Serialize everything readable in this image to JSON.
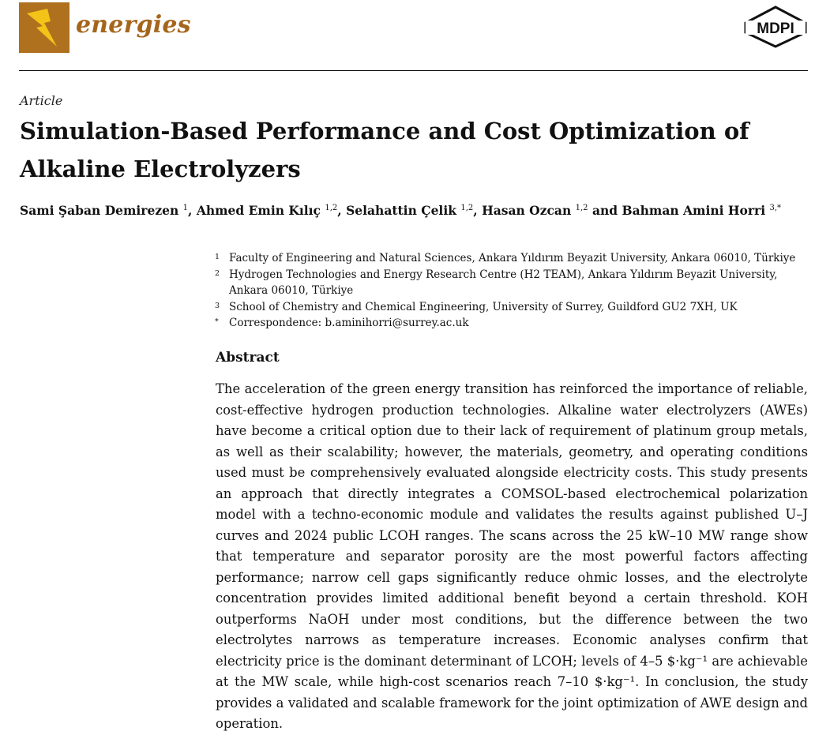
{
  "header": {
    "journal_name": "energies",
    "publisher": "MDPI",
    "logo_icon": "lightning-bolt-icon",
    "colors": {
      "logo_bg": "#b0711f",
      "logo_bolt": "#f3c318",
      "journal_name": "#a5661b"
    }
  },
  "article": {
    "type": "Article",
    "title": "Simulation-Based Performance and Cost Optimization of Alkaline Electrolyzers"
  },
  "authors": [
    {
      "name": "Sami Şaban Demirezen",
      "sup": "1",
      "sep": ", "
    },
    {
      "name": "Ahmed Emin Kılıç",
      "sup": "1,2",
      "sep": ", "
    },
    {
      "name": "Selahattin Çelik",
      "sup": "1,2",
      "sep": ", "
    },
    {
      "name": "Hasan Ozcan",
      "sup": "1,2",
      "sep": " and "
    },
    {
      "name": "Bahman Amini Horri",
      "sup": "3,*",
      "sep": ""
    }
  ],
  "affiliations": [
    {
      "mark": "1",
      "text": "Faculty of Engineering and Natural Sciences, Ankara Yıldırım Beyazit University, Ankara 06010, Türkiye"
    },
    {
      "mark": "2",
      "text": "Hydrogen Technologies and Energy Research Centre (H2 TEAM), Ankara Yıldırım Beyazit University, Ankara 06010, Türkiye"
    },
    {
      "mark": "3",
      "text": "School of Chemistry and Chemical Engineering, University of Surrey, Guildford GU2 7XH, UK"
    },
    {
      "mark": "*",
      "text": "Correspondence: b.aminihorri@surrey.ac.uk"
    }
  ],
  "abstract": {
    "heading": "Abstract",
    "text": "The acceleration of the green energy transition has reinforced the importance of reliable, cost-effective hydrogen production technologies. Alkaline water electrolyzers (AWEs) have become a critical option due to their lack of requirement of platinum group metals, as well as their scalability; however, the materials, geometry, and operating conditions used must be comprehensively evaluated alongside electricity costs. This study presents an approach that directly integrates a COMSOL-based electrochemical polarization model with a techno-economic module and validates the results against published U–J curves and 2024 public LCOH ranges. The scans across the 25 kW–10 MW range show that temperature and separator porosity are the most powerful factors affecting performance; narrow cell gaps significantly reduce ohmic losses, and the electrolyte concentration provides limited additional benefit beyond a certain threshold. KOH outperforms NaOH under most conditions, but the difference between the two electrolytes narrows as temperature increases. Economic analyses confirm that electricity price is the dominant determinant of LCOH; levels of 4–5 $·kg⁻¹ are achievable at the MW scale, while high-cost scenarios reach 7–10 $·kg⁻¹. In conclusion, the study provides a validated and scalable framework for the joint optimization of AWE design and operation."
  }
}
